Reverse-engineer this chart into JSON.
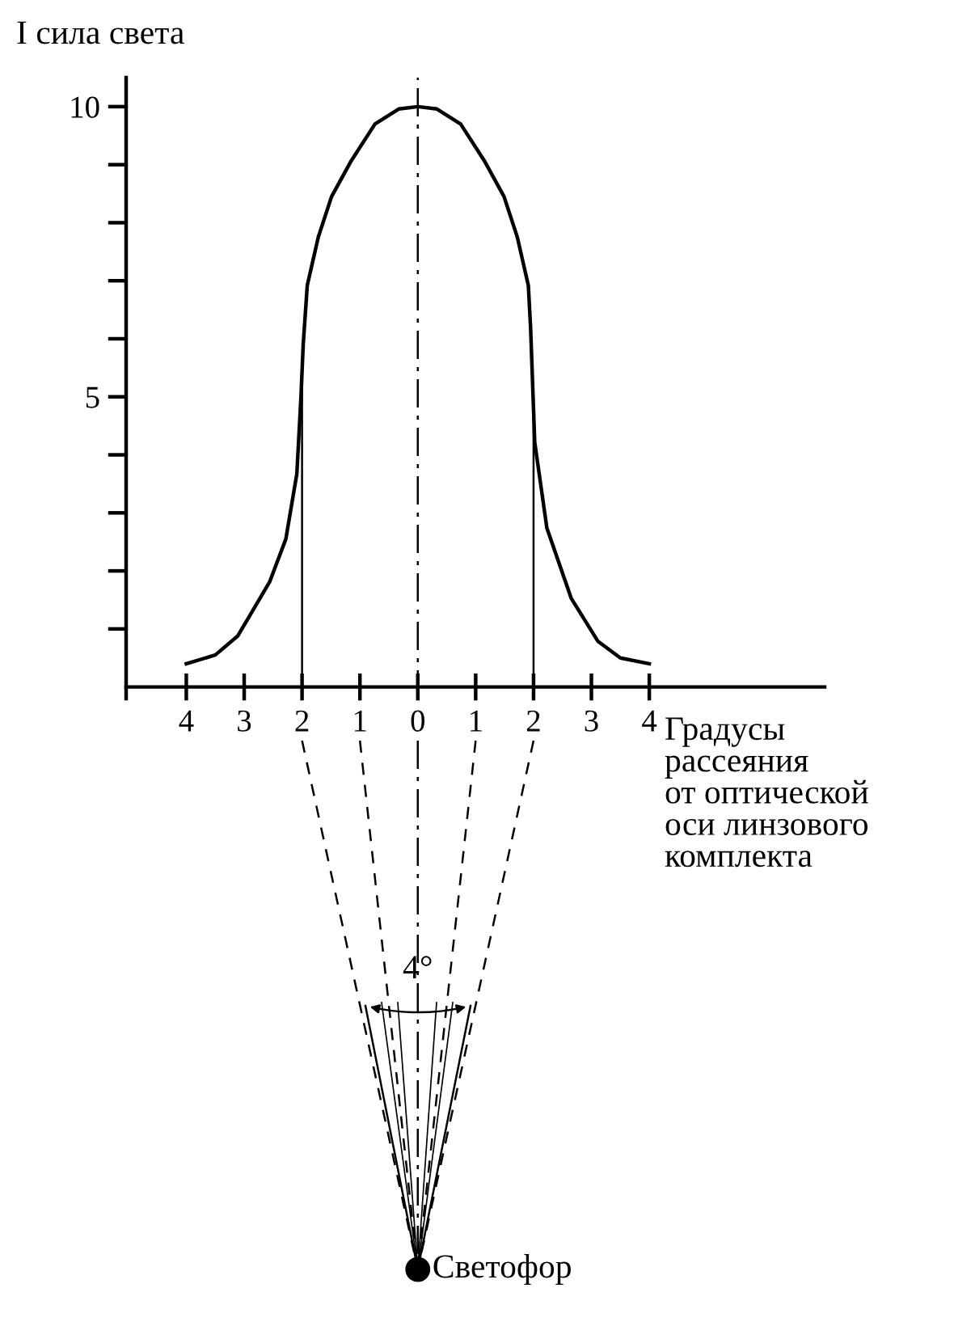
{
  "chart_data": {
    "type": "line",
    "ylabel": "I сила света",
    "xlabel": "Градусы\nрассеяния\nот оптической\nоси линзового\nкомплекта",
    "x": [
      -4,
      -3.5,
      -3.11,
      -2.56,
      -2.28,
      -2.09,
      -2.02,
      -1.98,
      -1.91,
      -1.72,
      -1.49,
      -1.16,
      -0.74,
      -0.33,
      0,
      0.33,
      0.74,
      1.16,
      1.49,
      1.72,
      1.91,
      1.95,
      2.02,
      2.23,
      2.65,
      3.11,
      3.5,
      4
    ],
    "series": [
      {
        "color": "#000000",
        "values": [
          0.4,
          0.55,
          0.88,
          1.81,
          2.55,
          3.67,
          4.97,
          5.9,
          6.92,
          7.75,
          8.45,
          9.05,
          9.7,
          9.96,
          10,
          9.96,
          9.7,
          9.05,
          8.45,
          7.75,
          6.92,
          6.17,
          4.22,
          2.74,
          1.53,
          0.79,
          0.5,
          0.4
        ]
      }
    ],
    "xlim": [
      -5.04,
      7.03
    ],
    "ylim": [
      -0.2,
      10.5
    ],
    "xticks": [
      {
        "value": -4,
        "label": "4"
      },
      {
        "value": -3,
        "label": "3"
      },
      {
        "value": -2,
        "label": "2"
      },
      {
        "value": -1,
        "label": "1"
      },
      0,
      1,
      2,
      3,
      4
    ],
    "yticks": [
      {
        "value": 1,
        "label": null
      },
      {
        "value": 2,
        "label": null
      },
      {
        "value": 3,
        "label": null
      },
      {
        "value": 4,
        "label": null
      },
      5,
      {
        "value": 6,
        "label": null
      },
      {
        "value": 7,
        "label": null
      },
      {
        "value": 8,
        "label": null
      },
      {
        "value": 9,
        "label": null
      },
      10
    ],
    "ref_lines": [
      {
        "axis": "x",
        "value": -2,
        "line_style": "solid"
      },
      {
        "axis": "x",
        "value": 2,
        "line_style": "solid"
      },
      {
        "axis": "x",
        "value": 0,
        "line_style": "dashdot"
      }
    ],
    "annotations": [
      "4°",
      "Светофор"
    ],
    "grid": false,
    "legend": false,
    "marker": "none",
    "line_style": "solid"
  }
}
